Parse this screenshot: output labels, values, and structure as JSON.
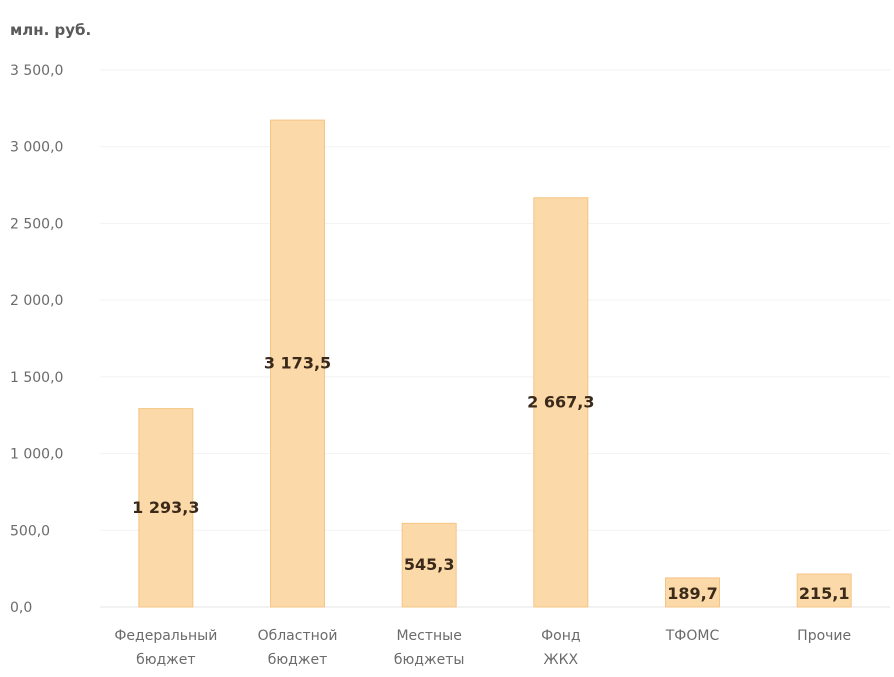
{
  "chart_data": {
    "type": "bar",
    "unit_label": "млн. руб.",
    "categories": [
      [
        "Федеральный",
        "бюджет"
      ],
      [
        "Областной",
        "бюджет"
      ],
      [
        "Местные",
        "бюджеты"
      ],
      [
        "Фонд",
        "ЖКХ"
      ],
      [
        "ТФОМС"
      ],
      [
        "Прочие"
      ]
    ],
    "values": [
      1293.3,
      3173.5,
      545.3,
      2667.3,
      189.7,
      215.1
    ],
    "data_labels": [
      "1 293,3",
      "3 173,5",
      "545,3",
      "2 667,3",
      "189,7",
      "215,1"
    ],
    "y_ticks": [
      0,
      500,
      1000,
      1500,
      2000,
      2500,
      3000,
      3500
    ],
    "y_tick_labels": [
      "0,0",
      "500,0",
      "1 000,0",
      "1 500,0",
      "2 000,0",
      "2 500,0",
      "3 000,0",
      "3 500,0"
    ],
    "ylim": [
      0,
      3500
    ],
    "grid": true,
    "legend": "none",
    "bar_color": "#fbd9a8",
    "bar_edge_color": "#f5c585"
  }
}
